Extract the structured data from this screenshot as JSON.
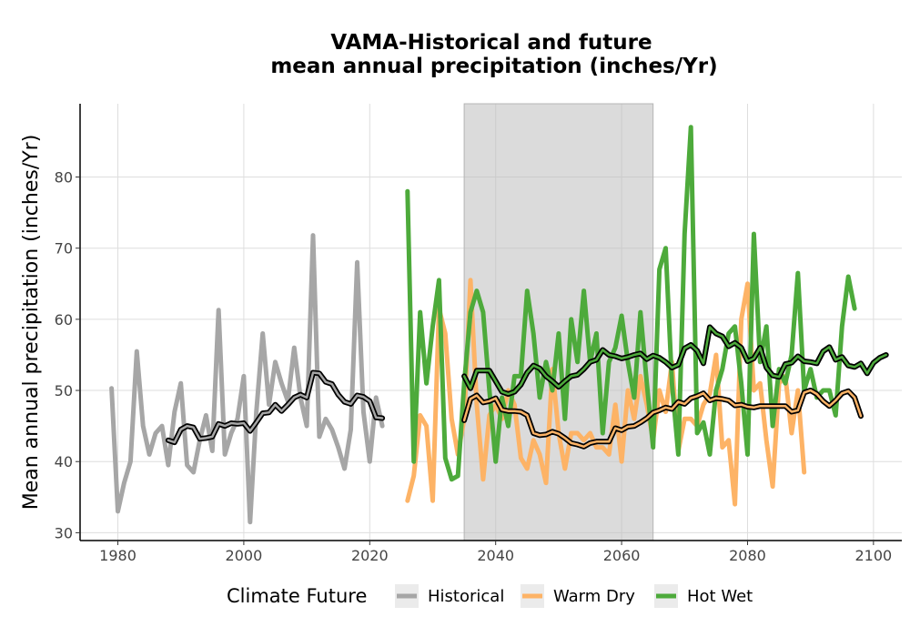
{
  "chart_data": {
    "type": "line",
    "title_line1": "VAMA-Historical and future",
    "title_line2": "mean annual precipitation (inches/Yr)",
    "xlabel": "",
    "ylabel": "Mean annual precipitation (inches/Yr)",
    "xlim": [
      1974,
      2104.5
    ],
    "ylim": [
      28.9,
      90.3
    ],
    "x_ticks": [
      1980,
      2000,
      2020,
      2040,
      2060,
      2080,
      2100
    ],
    "y_ticks": [
      30,
      40,
      50,
      60,
      70,
      80
    ],
    "grid": true,
    "shaded_period": [
      2035,
      2065
    ],
    "legend": {
      "title": "Climate Future",
      "position": "bottom",
      "items": [
        {
          "label": "Historical",
          "color": "#A6A6A6"
        },
        {
          "label": "Warm Dry",
          "color": "#FDB366"
        },
        {
          "label": "Hot Wet",
          "color": "#4DAA3B"
        }
      ]
    },
    "series": [
      {
        "name": "Historical",
        "color": "#A6A6A6",
        "x_start": 1979,
        "values": [
          50.3,
          33.0,
          37.0,
          40.0,
          55.5,
          45.0,
          41.0,
          44.0,
          45.0,
          39.5,
          47.0,
          51.0,
          39.5,
          38.5,
          43.0,
          46.5,
          41.5,
          61.3,
          41.0,
          44.0,
          46.0,
          52.0,
          31.5,
          47.0,
          58.0,
          48.0,
          54.0,
          51.0,
          48.5,
          56.0,
          49.0,
          45.0,
          71.8,
          43.5,
          46.0,
          44.5,
          42.0,
          39.0,
          44.5,
          68.0,
          47.0,
          40.0,
          49.0,
          45.0
        ]
      },
      {
        "name": "Historical (moving avg)",
        "color": "#A6A6A6",
        "x_start": 1988,
        "values": [
          43.0,
          42.7,
          44.5,
          45.0,
          44.8,
          43.2,
          43.3,
          43.5,
          45.3,
          45.0,
          45.4,
          45.3,
          45.4,
          44.3,
          45.5,
          46.8,
          46.9,
          48.0,
          47.1,
          48.0,
          49.0,
          49.4,
          49.0,
          52.5,
          52.4,
          51.2,
          50.9,
          49.4,
          48.4,
          48.1,
          49.3,
          49.1,
          48.5,
          46.2,
          46.1
        ]
      },
      {
        "name": "Warm Dry",
        "color": "#FDB366",
        "x_start": 2026,
        "values": [
          34.5,
          38.0,
          46.5,
          45.0,
          34.5,
          61.5,
          58.0,
          46.0,
          41.0,
          46.0,
          65.5,
          48.0,
          37.5,
          46.5,
          48.0,
          46.0,
          50.0,
          48.0,
          40.5,
          39.0,
          43.0,
          41.0,
          37.0,
          53.0,
          44.0,
          39.0,
          44.0,
          44.0,
          43.0,
          44.0,
          42.0,
          42.0,
          41.0,
          48.0,
          40.0,
          50.0,
          46.0,
          52.0,
          48.0,
          43.0,
          50.0,
          47.0,
          54.0,
          41.5,
          46.0,
          46.0,
          45.0,
          48.0,
          49.5,
          55.0,
          42.0,
          43.0,
          34.0,
          60.0,
          65.0,
          50.0,
          51.0,
          43.0,
          36.5,
          51.0,
          52.0,
          44.0,
          50.0,
          38.5
        ]
      },
      {
        "name": "Warm Dry (moving avg)",
        "color": "#FDB366",
        "x_start": 2035,
        "values": [
          45.8,
          48.8,
          49.3,
          48.3,
          48.5,
          48.9,
          47.3,
          47.1,
          47.1,
          47.0,
          46.5,
          44.0,
          43.7,
          43.8,
          44.2,
          43.9,
          43.3,
          42.6,
          42.4,
          42.1,
          42.6,
          42.8,
          42.8,
          42.8,
          44.7,
          44.4,
          44.9,
          45.0,
          45.5,
          46.1,
          46.9,
          47.2,
          47.6,
          47.4,
          48.4,
          48.1,
          48.9,
          49.2,
          49.6,
          48.6,
          48.9,
          48.8,
          48.6,
          47.9,
          48.0,
          47.7,
          47.6,
          47.8,
          47.8,
          47.8,
          47.8,
          47.8,
          47.0,
          47.2,
          49.7,
          50.0,
          49.5,
          48.5,
          47.8,
          48.6,
          49.6,
          49.9,
          49.0,
          46.4
        ]
      },
      {
        "name": "Hot Wet",
        "color": "#4DAA3B",
        "x_start": 2026,
        "values": [
          78.0,
          40.0,
          61.0,
          51.0,
          59.0,
          65.5,
          40.5,
          37.5,
          38.0,
          51.0,
          61.0,
          64.0,
          61.0,
          50.0,
          40.0,
          49.0,
          45.0,
          52.0,
          52.0,
          64.0,
          58.0,
          49.0,
          54.0,
          50.0,
          58.0,
          46.0,
          60.0,
          54.0,
          64.0,
          54.0,
          58.0,
          44.0,
          54.0,
          56.0,
          60.5,
          54.0,
          49.0,
          61.0,
          51.0,
          42.0,
          67.0,
          70.0,
          51.0,
          41.0,
          72.0,
          87.0,
          44.0,
          45.5,
          41.0,
          50.0,
          53.0,
          58.0,
          59.0,
          51.0,
          41.0,
          72.0,
          54.0,
          59.0,
          45.0,
          53.0,
          51.0,
          55.0,
          66.5,
          50.0,
          53.0,
          49.0,
          50.0,
          50.0,
          46.5,
          59.0,
          66.0,
          61.5
        ]
      },
      {
        "name": "Hot Wet (moving avg)",
        "color": "#4DAA3B",
        "x_start": 2035,
        "values": [
          52.0,
          50.3,
          52.8,
          52.8,
          52.8,
          51.3,
          49.8,
          49.5,
          49.8,
          50.8,
          52.5,
          53.5,
          53.1,
          52.0,
          51.3,
          50.5,
          51.3,
          52.0,
          52.2,
          53.0,
          54.0,
          54.3,
          55.7,
          55.0,
          54.8,
          54.5,
          54.7,
          55.0,
          55.2,
          54.4,
          54.9,
          54.6,
          54.0,
          53.2,
          53.6,
          55.9,
          56.4,
          55.6,
          53.8,
          58.9,
          58.0,
          57.6,
          56.2,
          56.7,
          56.0,
          54.1,
          54.5,
          56.0,
          53.2,
          52.1,
          51.9,
          53.7,
          53.9,
          54.8,
          54.1,
          54.0,
          53.8,
          55.5,
          56.1,
          54.3,
          54.7,
          53.5,
          53.3,
          53.8,
          52.4,
          53.9,
          54.6,
          55.0
        ]
      }
    ]
  }
}
